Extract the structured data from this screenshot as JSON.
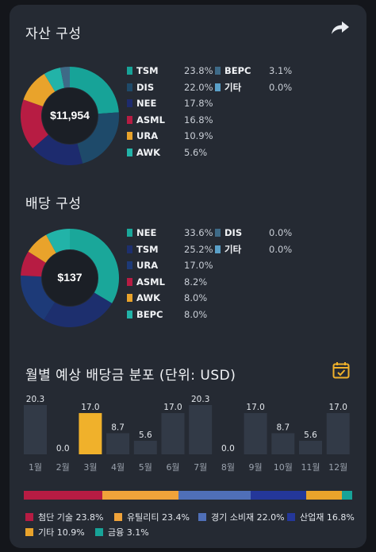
{
  "asset": {
    "title": "자산 구성",
    "total": "$11,954",
    "items": [
      {
        "name": "TSM",
        "pct": "23.8%",
        "color": "#17a398",
        "value": 23.8
      },
      {
        "name": "DIS",
        "pct": "22.0%",
        "color": "#1e4a6a",
        "value": 22.0
      },
      {
        "name": "NEE",
        "pct": "17.8%",
        "color": "#1d2b6e",
        "value": 17.8
      },
      {
        "name": "ASML",
        "pct": "16.8%",
        "color": "#b71c43",
        "value": 16.8
      },
      {
        "name": "URA",
        "pct": "10.9%",
        "color": "#e9a32b",
        "value": 10.9
      },
      {
        "name": "AWK",
        "pct": "5.6%",
        "color": "#22b3a8",
        "value": 5.6
      },
      {
        "name": "BEPC",
        "pct": "3.1%",
        "color": "#3e6a87",
        "value": 3.1
      },
      {
        "name": "기타",
        "pct": "0.0%",
        "color": "#5aa0c8",
        "value": 0.0
      }
    ]
  },
  "dividend": {
    "title": "배당 구성",
    "total": "$137",
    "items": [
      {
        "name": "NEE",
        "pct": "33.6%",
        "color": "#1aa79a",
        "value": 33.6
      },
      {
        "name": "TSM",
        "pct": "25.2%",
        "color": "#1d2f6e",
        "value": 25.2
      },
      {
        "name": "URA",
        "pct": "17.0%",
        "color": "#1d3a78",
        "value": 17.0
      },
      {
        "name": "ASML",
        "pct": "8.2%",
        "color": "#b71c43",
        "value": 8.2
      },
      {
        "name": "AWK",
        "pct": "8.0%",
        "color": "#e9a32b",
        "value": 8.0
      },
      {
        "name": "BEPC",
        "pct": "8.0%",
        "color": "#22b3a8",
        "value": 8.0
      },
      {
        "name": "DIS",
        "pct": "0.0%",
        "color": "#3e6a87",
        "value": 0.0
      },
      {
        "name": "기타",
        "pct": "0.0%",
        "color": "#5aa0c8",
        "value": 0.0
      }
    ]
  },
  "monthly": {
    "title": "월별 예상 배당금 분포 (단위: USD)",
    "highlight_color": "#f0b12b",
    "bar_color": "#323a47"
  },
  "chart_data": {
    "type": "bar",
    "categories": [
      "1월",
      "2월",
      "3월",
      "4월",
      "5월",
      "6월",
      "7월",
      "8월",
      "9월",
      "10월",
      "11월",
      "12월"
    ],
    "values": [
      20.3,
      0.0,
      17.0,
      8.7,
      5.6,
      17.0,
      20.3,
      0.0,
      17.0,
      8.7,
      5.6,
      17.0
    ],
    "value_labels": [
      "20.3",
      "0.0",
      "17.0",
      "8.7",
      "5.6",
      "17.0",
      "20.3",
      "0.0",
      "17.0",
      "8.7",
      "5.6",
      "17.0"
    ],
    "highlighted_index": 2,
    "ylim": [
      0,
      20.3
    ],
    "grid": false
  },
  "sectors": {
    "items": [
      {
        "name": "첨단 기술",
        "pct": "23.8%",
        "color": "#b71c43",
        "value": 23.8
      },
      {
        "name": "유틸리티",
        "pct": "23.4%",
        "color": "#f0a33a",
        "value": 23.4
      },
      {
        "name": "경기 소비재",
        "pct": "22.0%",
        "color": "#4f6fb8",
        "value": 22.0
      },
      {
        "name": "산업재",
        "pct": "16.8%",
        "color": "#24379a",
        "value": 16.8
      },
      {
        "name": "기타",
        "pct": "10.9%",
        "color": "#e9a32b",
        "value": 10.9
      },
      {
        "name": "금융",
        "pct": "3.1%",
        "color": "#17a398",
        "value": 3.1
      }
    ]
  }
}
